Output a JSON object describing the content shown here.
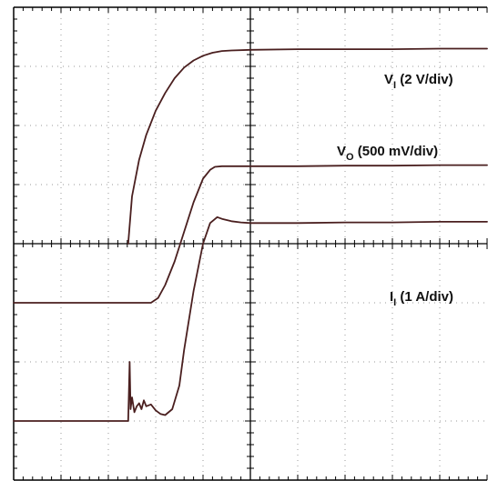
{
  "chart_data": {
    "type": "line",
    "title": "",
    "xlabel": "",
    "ylabel": "",
    "grid": true,
    "grid_divisions": {
      "x": 10,
      "y": 8
    },
    "xlim": [
      0,
      10
    ],
    "ylim": [
      -4,
      4
    ],
    "colors": {
      "background": "#ffffff",
      "grid": "#9a9a9a",
      "border": "#000000",
      "trace": "#4a1f1f"
    },
    "series": [
      {
        "name": "V_I",
        "label_main": "V",
        "label_sub": "I",
        "label_rest": " (2 V/div)",
        "x": [
          2.42,
          2.5,
          2.65,
          2.8,
          3.0,
          3.2,
          3.4,
          3.6,
          3.8,
          4.0,
          4.2,
          4.4,
          4.6,
          5.0,
          6.0,
          7.0,
          8.0,
          9.0,
          10.0
        ],
        "y": [
          0.0,
          0.8,
          1.42,
          1.84,
          2.25,
          2.55,
          2.8,
          2.98,
          3.1,
          3.18,
          3.23,
          3.26,
          3.27,
          3.28,
          3.29,
          3.29,
          3.29,
          3.3,
          3.3
        ]
      },
      {
        "name": "V_O",
        "label_main": "V",
        "label_sub": "O",
        "label_rest": " (500 mV/div)",
        "x": [
          0.0,
          1.0,
          2.0,
          2.9,
          3.05,
          3.2,
          3.4,
          3.6,
          3.8,
          4.0,
          4.15,
          4.25,
          4.4,
          5.0,
          6.0,
          7.0,
          8.0,
          9.0,
          10.0
        ],
        "y": [
          -1.0,
          -1.0,
          -1.0,
          -1.0,
          -0.92,
          -0.7,
          -0.3,
          0.2,
          0.7,
          1.1,
          1.25,
          1.3,
          1.31,
          1.31,
          1.31,
          1.32,
          1.32,
          1.33,
          1.33
        ]
      },
      {
        "name": "I_I",
        "label_main": "I",
        "label_sub": "I",
        "label_rest": " (1 A/div)",
        "x": [
          0.0,
          1.0,
          2.0,
          2.42,
          2.45,
          2.47,
          2.5,
          2.55,
          2.6,
          2.65,
          2.7,
          2.75,
          2.8,
          2.9,
          3.0,
          3.1,
          3.2,
          3.35,
          3.5,
          3.6,
          3.8,
          4.0,
          4.15,
          4.3,
          4.4,
          4.6,
          4.8,
          5.0,
          6.0,
          7.0,
          8.0,
          9.0,
          10.0
        ],
        "y": [
          -3.0,
          -3.0,
          -3.0,
          -3.0,
          -2.0,
          -2.8,
          -2.6,
          -2.85,
          -2.75,
          -2.7,
          -2.8,
          -2.65,
          -2.75,
          -2.72,
          -2.82,
          -2.88,
          -2.9,
          -2.8,
          -2.4,
          -1.8,
          -0.8,
          0.0,
          0.35,
          0.45,
          0.42,
          0.38,
          0.36,
          0.35,
          0.35,
          0.36,
          0.36,
          0.37,
          0.37
        ]
      }
    ]
  }
}
